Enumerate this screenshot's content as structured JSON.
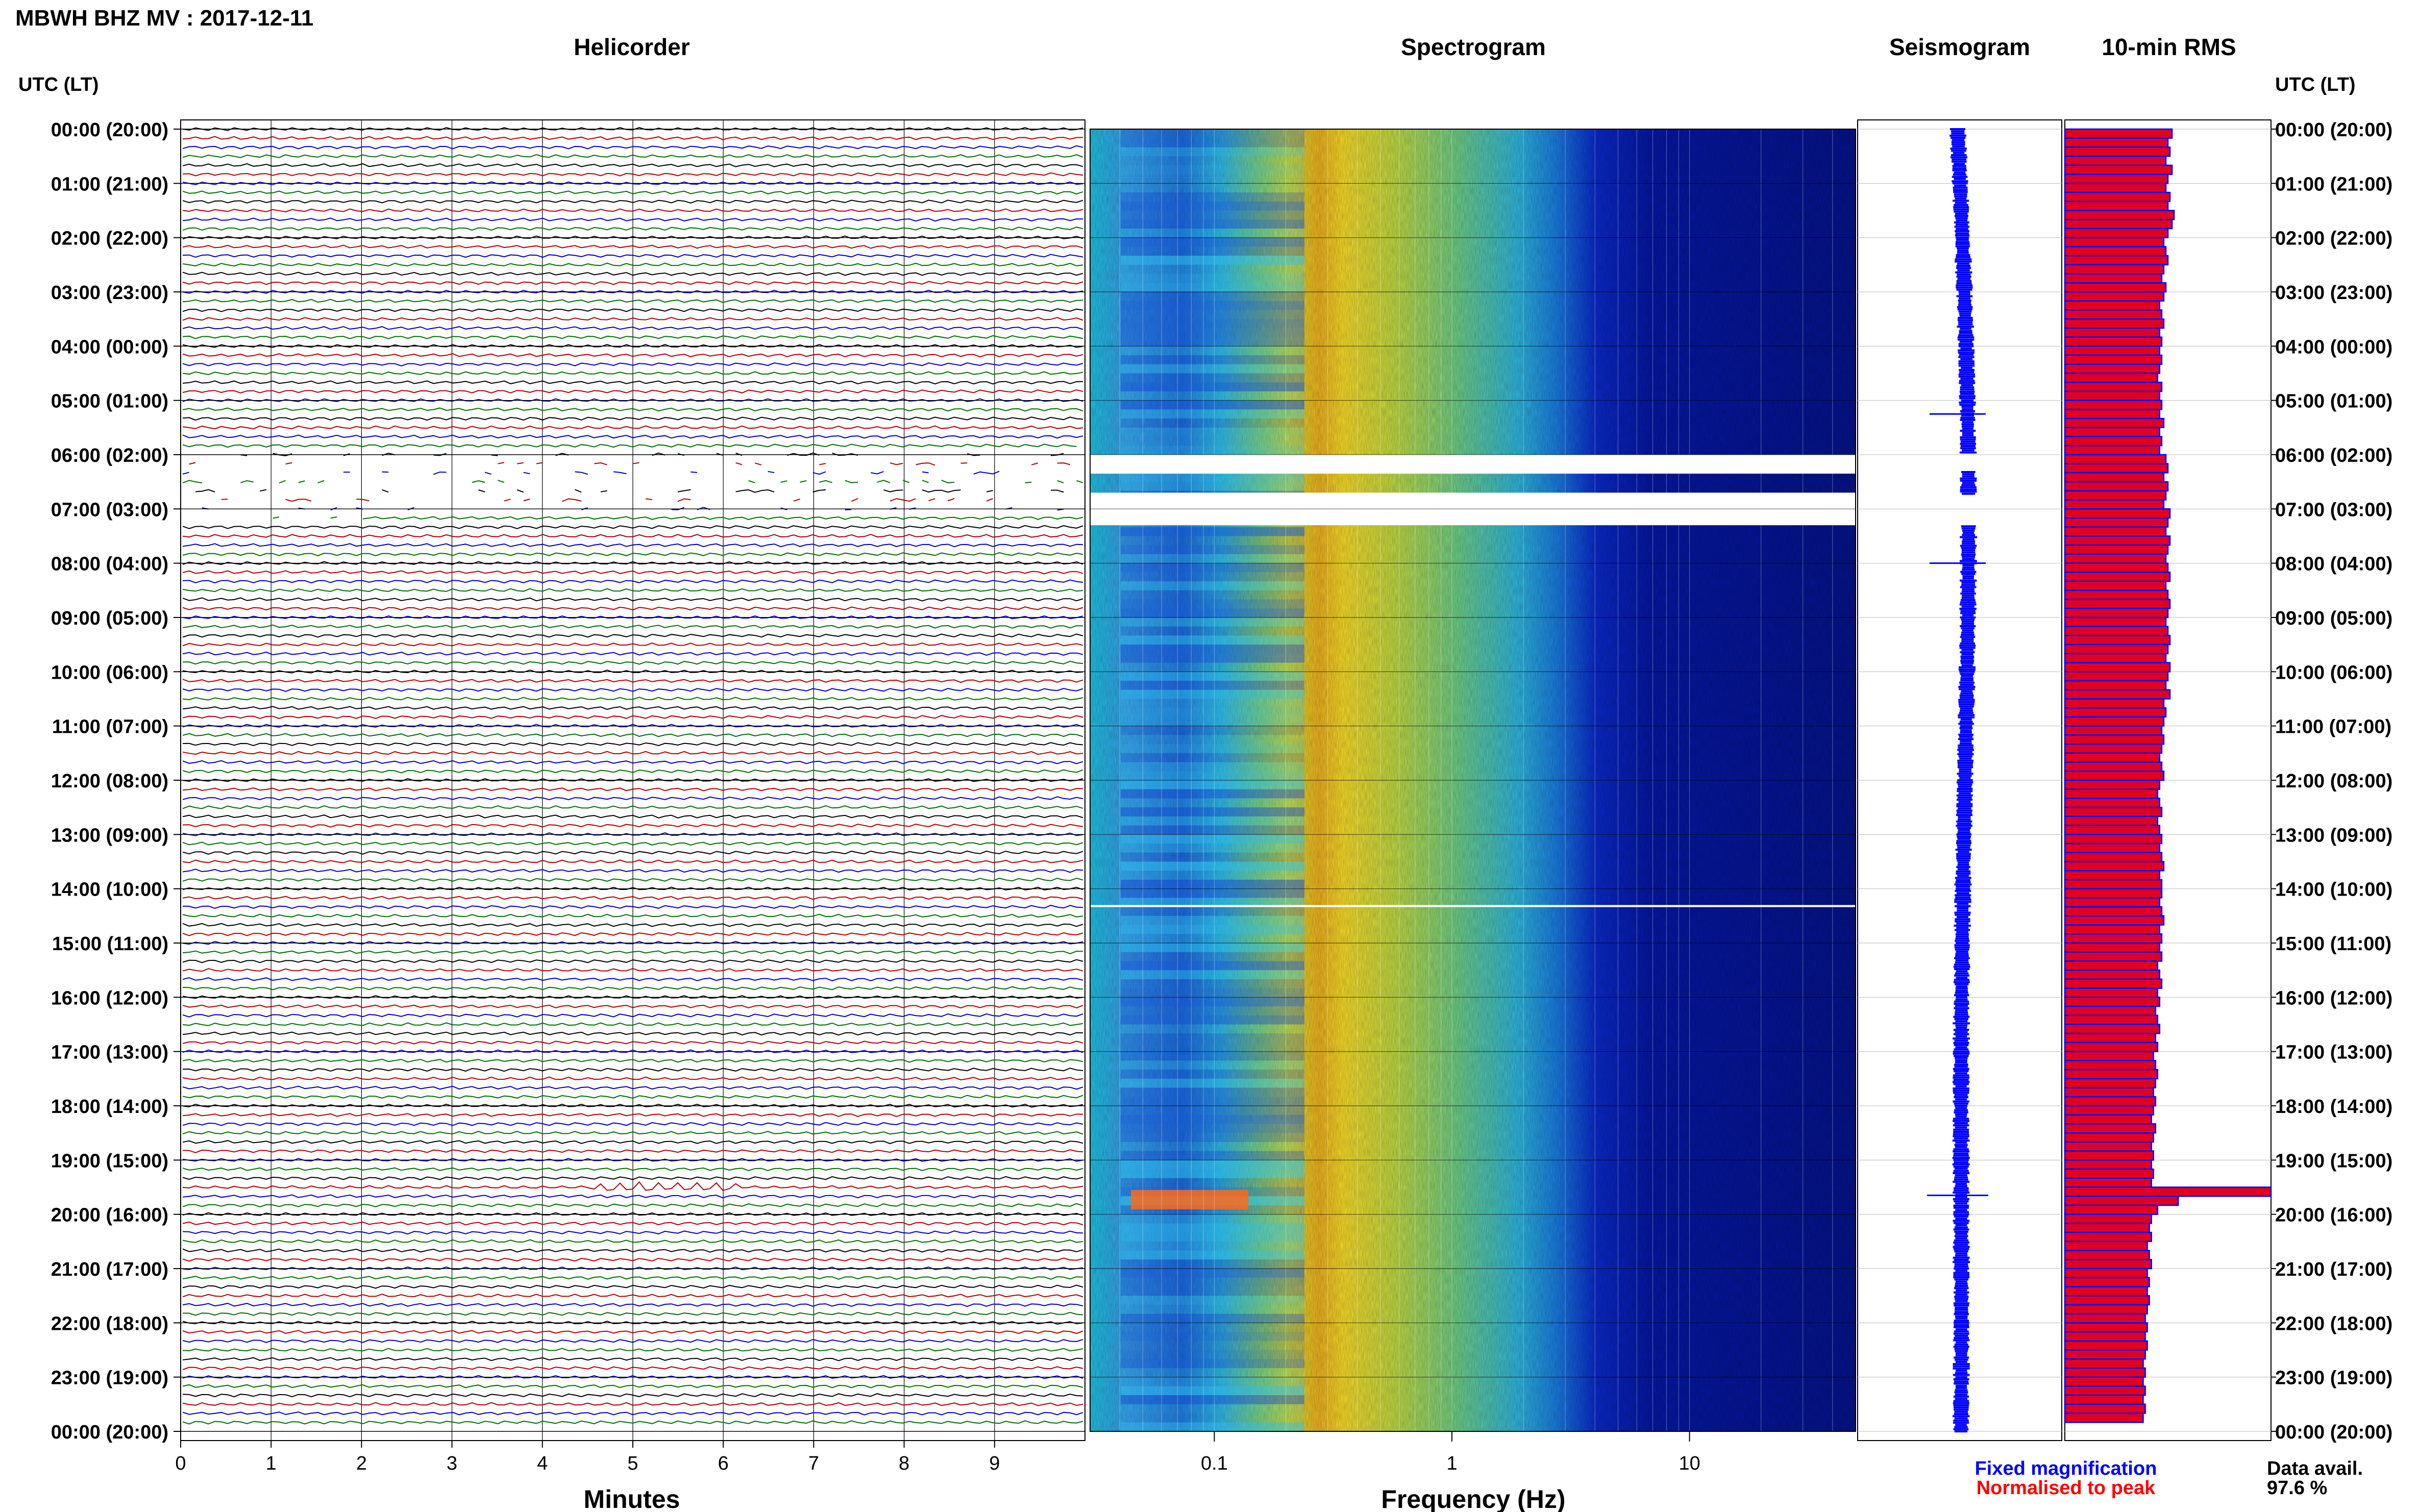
{
  "header": {
    "title": "MBWH BHZ MV : 2017-12-11"
  },
  "panels": {
    "helicorder": "Helicorder",
    "spectrogram": "Spectrogram",
    "seismogram": "Seismogram",
    "rms": "10-min RMS"
  },
  "axes": {
    "utc_label": "UTC (LT)",
    "minutes_label": "Minutes",
    "frequency_label": "Frequency (Hz)"
  },
  "legend": {
    "fixed": "Fixed magnification",
    "normalised": "Normalised to peak",
    "data_avail_label": "Data avail.",
    "data_avail_value": "97.6 %"
  },
  "colors": {
    "trace_cycle": [
      "#000000",
      "#b00000",
      "#0000c0",
      "#007000"
    ],
    "seismogram": "#0000ff",
    "rms_fill": "#e00020",
    "rms_edge": "#0000ff"
  },
  "chart_data": [
    {
      "type": "line",
      "title": "Helicorder",
      "xlabel": "Minutes",
      "ylabel": "UTC (LT)",
      "xlim": [
        0,
        10
      ],
      "x_ticks": [
        "0",
        "1",
        "2",
        "3",
        "4",
        "5",
        "6",
        "7",
        "8",
        "9"
      ],
      "y_ticks": [
        "00:00 (20:00)",
        "01:00 (21:00)",
        "02:00 (22:00)",
        "03:00 (23:00)",
        "04:00 (00:00)",
        "05:00 (01:00)",
        "06:00 (02:00)",
        "07:00 (03:00)",
        "08:00 (04:00)",
        "09:00 (05:00)",
        "10:00 (06:00)",
        "11:00 (07:00)",
        "12:00 (08:00)",
        "13:00 (09:00)",
        "14:00 (10:00)",
        "15:00 (11:00)",
        "16:00 (12:00)",
        "17:00 (13:00)",
        "18:00 (14:00)",
        "19:00 (15:00)",
        "20:00 (16:00)",
        "21:00 (17:00)",
        "22:00 (18:00)",
        "23:00 (19:00)",
        "00:00 (20:00)"
      ],
      "rows": 144,
      "gaps_hours": [
        6.0,
        7.2
      ],
      "grid": true
    },
    {
      "type": "heatmap",
      "title": "Spectrogram",
      "xlabel": "Frequency (Hz)",
      "x_scale": "log",
      "x_ticks": [
        "0.1",
        "1",
        "10"
      ],
      "xlim": [
        0.03,
        50
      ],
      "gaps_hours": [
        [
          6.0,
          6.35
        ],
        [
          6.7,
          7.3
        ],
        [
          14.3,
          14.32
        ]
      ],
      "peak_frequency_hz": 0.25
    },
    {
      "type": "line",
      "title": "Seismogram",
      "event_hours": [
        5.25,
        8.0,
        19.65
      ]
    },
    {
      "type": "bar",
      "title": "10-min RMS",
      "orientation": "horizontal",
      "bins": 144,
      "values": [
        0.52,
        0.5,
        0.51,
        0.49,
        0.52,
        0.5,
        0.49,
        0.51,
        0.5,
        0.53,
        0.52,
        0.5,
        0.48,
        0.49,
        0.5,
        0.48,
        0.47,
        0.49,
        0.48,
        0.46,
        0.47,
        0.48,
        0.46,
        0.47,
        0.46,
        0.47,
        0.46,
        0.45,
        0.47,
        0.46,
        0.47,
        0.46,
        0.48,
        0.46,
        0.47,
        0.46,
        0.49,
        0.5,
        0.48,
        0.5,
        0.49,
        0.48,
        0.51,
        0.5,
        0.49,
        0.51,
        0.5,
        0.49,
        0.5,
        0.51,
        0.49,
        0.5,
        0.51,
        0.5,
        0.49,
        0.5,
        0.51,
        0.5,
        0.49,
        0.51,
        0.5,
        0.49,
        0.51,
        0.48,
        0.49,
        0.48,
        0.47,
        0.48,
        0.47,
        0.46,
        0.47,
        0.48,
        0.46,
        0.45,
        0.46,
        0.47,
        0.45,
        0.46,
        0.47,
        0.46,
        0.47,
        0.48,
        0.46,
        0.47,
        0.47,
        0.46,
        0.47,
        0.48,
        0.46,
        0.47,
        0.46,
        0.47,
        0.45,
        0.46,
        0.47,
        0.45,
        0.46,
        0.44,
        0.45,
        0.46,
        0.44,
        0.45,
        0.43,
        0.44,
        0.45,
        0.44,
        0.43,
        0.44,
        0.43,
        0.42,
        0.44,
        0.43,
        0.42,
        0.43,
        0.42,
        0.43,
        0.42,
        1.0,
        0.55,
        0.45,
        0.42,
        0.41,
        0.42,
        0.4,
        0.41,
        0.42,
        0.4,
        0.41,
        0.4,
        0.41,
        0.4,
        0.39,
        0.4,
        0.39,
        0.4,
        0.39,
        0.38,
        0.39,
        0.38,
        0.39,
        0.38,
        0.39,
        0.38,
        0.0
      ]
    }
  ]
}
